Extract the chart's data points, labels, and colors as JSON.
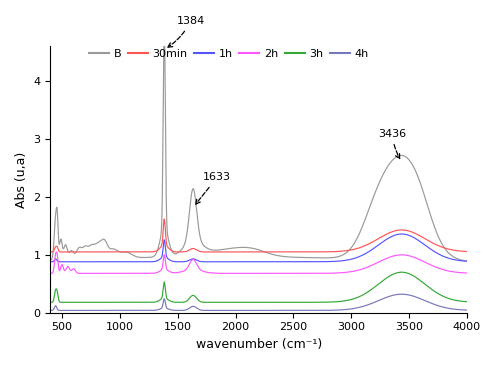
{
  "title": "",
  "xlabel": "wavenumber (cm⁻¹)",
  "ylabel": "Abs (u,a)",
  "xlim": [
    400,
    4000
  ],
  "ylim": [
    0,
    4.6
  ],
  "legend_labels": [
    "B",
    "30min",
    "1h",
    "2h",
    "3h",
    "4h"
  ],
  "legend_colors": [
    "#999999",
    "#ff5555",
    "#5555ff",
    "#ff55ff",
    "#33aa33",
    "#7777bb"
  ],
  "background_color": "#ffffff",
  "yticks": [
    0,
    1,
    2,
    3,
    4
  ],
  "xticks": [
    500,
    1000,
    1500,
    2000,
    2500,
    3000,
    3500,
    4000
  ]
}
